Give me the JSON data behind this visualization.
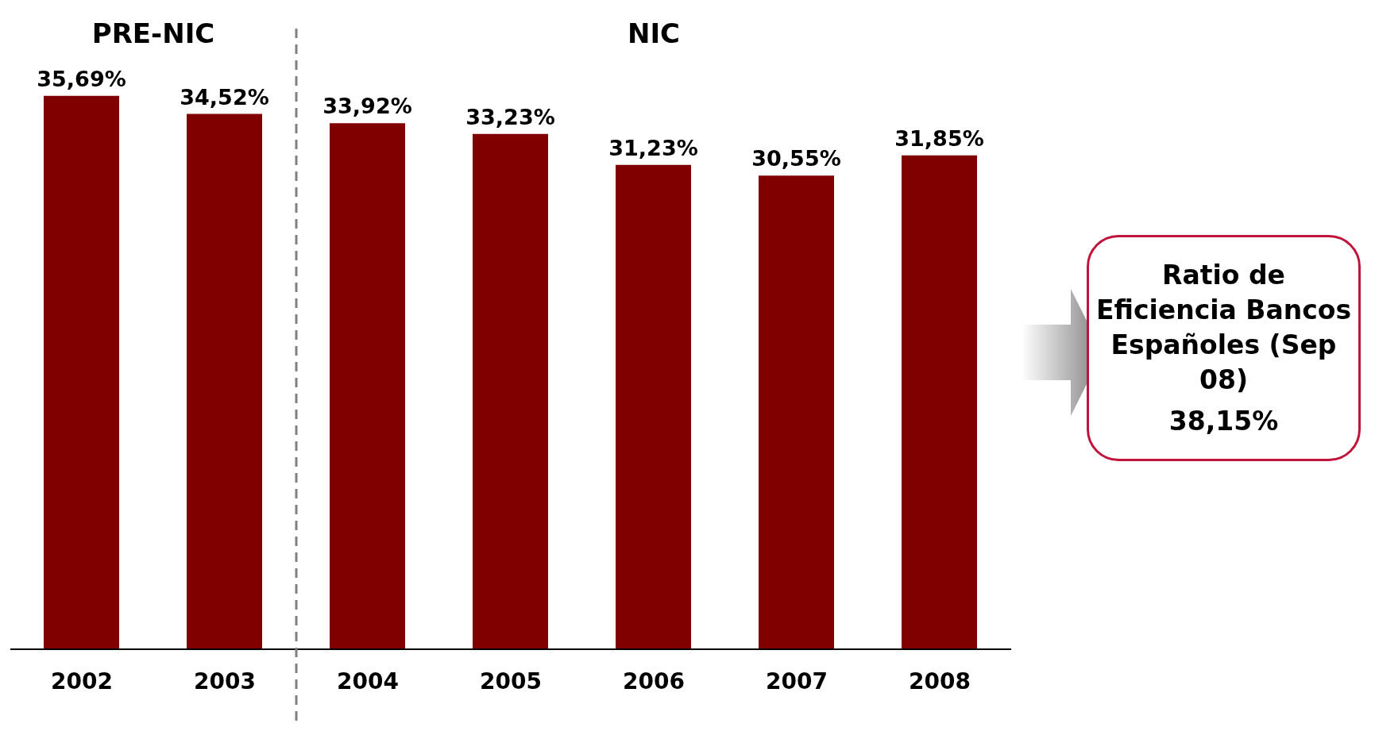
{
  "chart_data": {
    "type": "bar",
    "categories": [
      "2002",
      "2003",
      "2004",
      "2005",
      "2006",
      "2007",
      "2008"
    ],
    "values": [
      35.69,
      34.52,
      33.92,
      33.23,
      31.23,
      30.55,
      31.85
    ],
    "color": "#800000",
    "value_labels": [
      "35,69%",
      "34,52%",
      "33,92%",
      "33,23%",
      "31,23%",
      "30,55%",
      "31,85%"
    ],
    "annotations": [
      "PRE-NIC",
      "NIC",
      "Ratio de Eficiencia Bancos Españoles (Sep 08)",
      "38,15%"
    ]
  }
}
